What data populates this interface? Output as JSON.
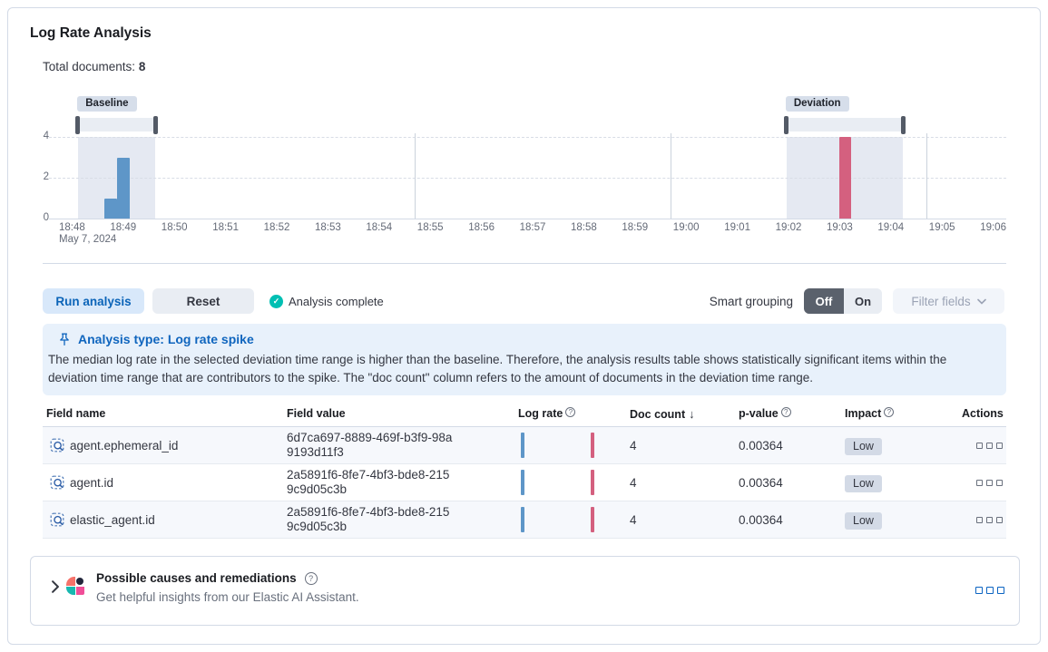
{
  "panel": {
    "title": "Log Rate Analysis",
    "total_documents_label": "Total documents:",
    "total_documents_value": "8"
  },
  "chart_data": {
    "type": "bar",
    "title": "Document count over time with baseline and deviation selections",
    "x_ticks": [
      "18:48",
      "18:49",
      "18:50",
      "18:51",
      "18:52",
      "18:53",
      "18:54",
      "18:55",
      "18:56",
      "18:57",
      "18:58",
      "18:59",
      "19:00",
      "19:01",
      "19:02",
      "19:03",
      "19:04",
      "19:05",
      "19:06"
    ],
    "x_axis_date": "May 7, 2024",
    "y_ticks": [
      0,
      2,
      4
    ],
    "ylim": [
      0,
      4
    ],
    "grid_ticks": [
      "18:55",
      "19:00",
      "19:05"
    ],
    "bar_width_min": 0.24,
    "bars": [
      {
        "start_min": 0.94,
        "approx_time": "18:48:56",
        "value": 1,
        "series": "baseline"
      },
      {
        "start_min": 1.19,
        "approx_time": "18:49:11",
        "value": 3,
        "series": "baseline"
      },
      {
        "start_min": 15.3,
        "approx_time": "19:03:18",
        "value": 4,
        "series": "deviation"
      }
    ],
    "windows": [
      {
        "label": "Baseline",
        "start_min": 0.43,
        "end_min": 1.93
      },
      {
        "label": "Deviation",
        "start_min": 14.27,
        "end_min": 16.54
      }
    ],
    "colors": {
      "baseline_bar": "#5E96C8",
      "deviation_bar": "#D4607F",
      "window_fill": "#E5E9F2",
      "brush_fill": "#E9EDF3",
      "brush_handle": "#535A66",
      "badge_bg": "#D6DEEA"
    },
    "legend_position": "none",
    "grid": "dashed-horizontal"
  },
  "toolbar": {
    "run_button": "Run analysis",
    "reset_button": "Reset",
    "status": "Analysis complete",
    "smart_grouping_label": "Smart grouping",
    "toggle_off": "Off",
    "toggle_on": "On",
    "filter_fields_button": "Filter fields"
  },
  "callout": {
    "title": "Analysis type: Log rate spike",
    "body": "The median log rate in the selected deviation time range is higher than the baseline. Therefore, the analysis results table shows statistically significant items within the deviation time range that are contributors to the spike. The \"doc count\" column refers to the amount of documents in the deviation time range."
  },
  "table": {
    "columns": [
      "Field name",
      "Field value",
      "Log rate",
      "Doc count",
      "p-value",
      "Impact",
      "Actions"
    ],
    "sorted_column": "Doc count",
    "sort_direction": "descending",
    "rows": [
      {
        "field_name": "agent.ephemeral_id",
        "field_value": "6d7ca697-8889-469f-b3f9-98a9193d11f3",
        "doc_count": "4",
        "p_value": "0.00364",
        "impact": "Low"
      },
      {
        "field_name": "agent.id",
        "field_value": "2a5891f6-8fe7-4bf3-bde8-2159c9d05c3b",
        "doc_count": "4",
        "p_value": "0.00364",
        "impact": "Low"
      },
      {
        "field_name": "elastic_agent.id",
        "field_value": "2a5891f6-8fe7-4bf3-bde8-2159c9d05c3b",
        "doc_count": "4",
        "p_value": "0.00364",
        "impact": "Low"
      }
    ]
  },
  "insights": {
    "title": "Possible causes and remediations",
    "subtitle": "Get helpful insights from our Elastic AI Assistant."
  },
  "icons": {
    "status_check": "✓",
    "sort_desc": "↓",
    "help": "?",
    "chevron_right": "❯",
    "chevron_down": "⌄"
  }
}
